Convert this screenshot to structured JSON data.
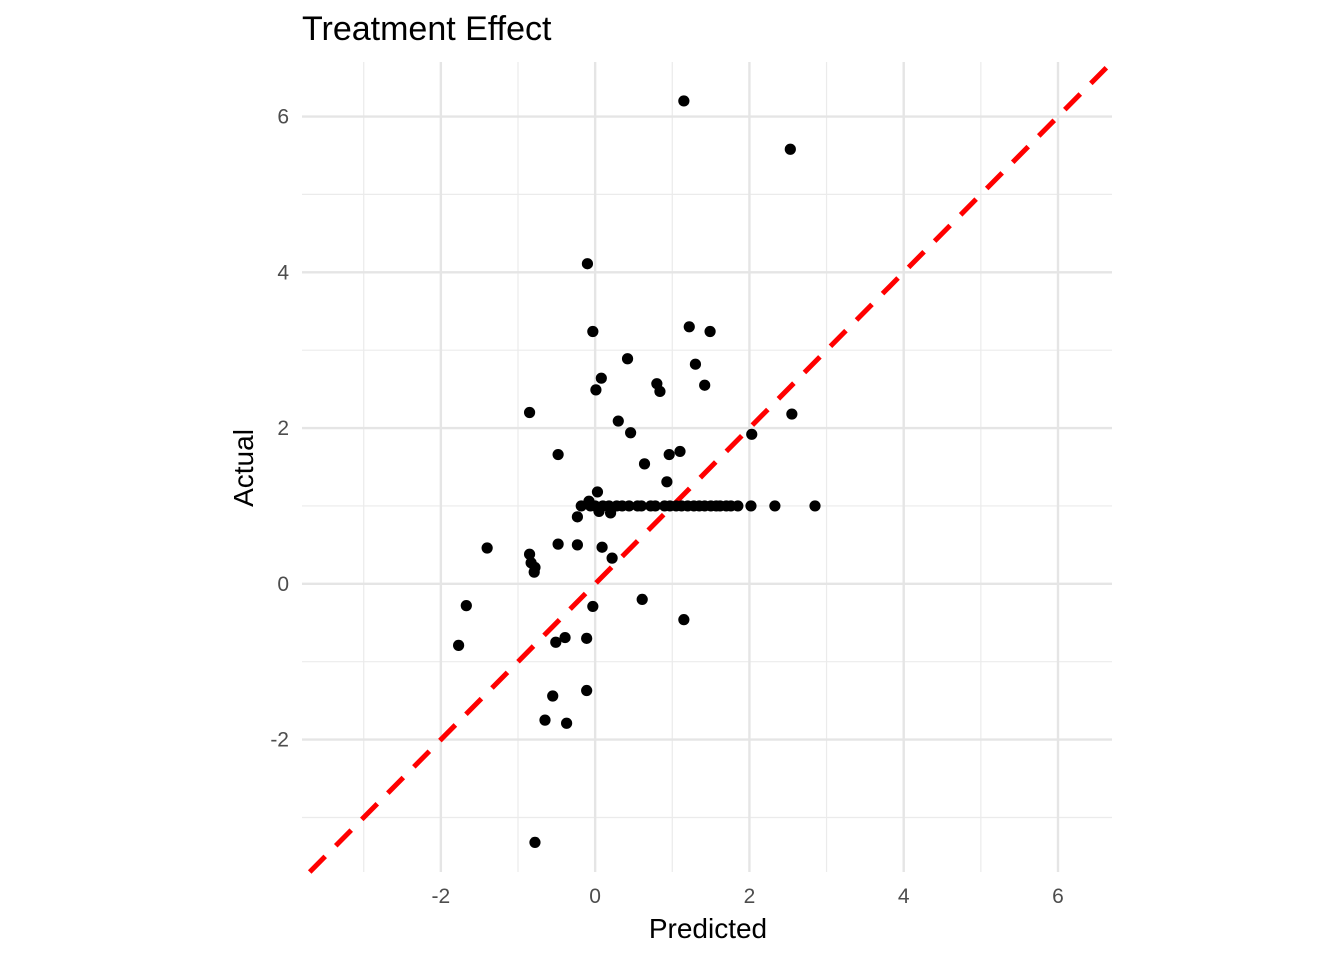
{
  "chart_data": {
    "type": "scatter",
    "title": "Treatment Effect",
    "xlabel": "Predicted",
    "ylabel": "Actual",
    "xlim": [
      -3.8,
      6.7
    ],
    "ylim": [
      -3.7,
      6.7
    ],
    "x_ticks": [
      -2,
      0,
      2,
      4,
      6
    ],
    "y_ticks": [
      -2,
      0,
      2,
      4,
      6
    ],
    "x_tick_labels": [
      "-2",
      "0",
      "2",
      "4",
      "6"
    ],
    "y_tick_labels": [
      "-2",
      "0",
      "2",
      "4",
      "6"
    ],
    "grid": true,
    "reference_line": {
      "slope": 1,
      "intercept": 0,
      "style": "dashed",
      "color": "#ff0000"
    },
    "point_color": "#000000",
    "points": [
      {
        "x": 1.15,
        "y": 6.2
      },
      {
        "x": 2.53,
        "y": 5.58
      },
      {
        "x": -0.1,
        "y": 4.11
      },
      {
        "x": -0.03,
        "y": 3.24
      },
      {
        "x": 1.22,
        "y": 3.3
      },
      {
        "x": 1.49,
        "y": 3.24
      },
      {
        "x": 0.42,
        "y": 2.89
      },
      {
        "x": 1.3,
        "y": 2.82
      },
      {
        "x": 0.08,
        "y": 2.64
      },
      {
        "x": 0.01,
        "y": 2.49
      },
      {
        "x": 0.8,
        "y": 2.57
      },
      {
        "x": 0.84,
        "y": 2.47
      },
      {
        "x": 1.42,
        "y": 2.55
      },
      {
        "x": -0.85,
        "y": 2.2
      },
      {
        "x": 2.55,
        "y": 2.18
      },
      {
        "x": 0.3,
        "y": 2.09
      },
      {
        "x": 0.46,
        "y": 1.94
      },
      {
        "x": 2.03,
        "y": 1.92
      },
      {
        "x": 1.1,
        "y": 1.7
      },
      {
        "x": 0.96,
        "y": 1.66
      },
      {
        "x": -0.48,
        "y": 1.66
      },
      {
        "x": 0.64,
        "y": 1.54
      },
      {
        "x": 0.93,
        "y": 1.31
      },
      {
        "x": 0.03,
        "y": 1.18
      },
      {
        "x": -0.08,
        "y": 1.06
      },
      {
        "x": -0.18,
        "y": 1.0
      },
      {
        "x": -0.06,
        "y": 1.0
      },
      {
        "x": 0.05,
        "y": 0.93
      },
      {
        "x": 0.2,
        "y": 0.91
      },
      {
        "x": -0.23,
        "y": 0.86
      },
      {
        "x": 0.0,
        "y": 1.0
      },
      {
        "x": 0.1,
        "y": 1.0
      },
      {
        "x": 0.18,
        "y": 1.0
      },
      {
        "x": 0.28,
        "y": 1.0
      },
      {
        "x": 0.35,
        "y": 1.0
      },
      {
        "x": 0.44,
        "y": 1.0
      },
      {
        "x": 0.55,
        "y": 1.0
      },
      {
        "x": 0.6,
        "y": 1.0
      },
      {
        "x": 0.72,
        "y": 1.0
      },
      {
        "x": 0.78,
        "y": 1.0
      },
      {
        "x": 0.9,
        "y": 1.0
      },
      {
        "x": 0.97,
        "y": 1.0
      },
      {
        "x": 1.05,
        "y": 1.0
      },
      {
        "x": 1.12,
        "y": 1.0
      },
      {
        "x": 1.2,
        "y": 1.0
      },
      {
        "x": 1.28,
        "y": 1.0
      },
      {
        "x": 1.35,
        "y": 1.0
      },
      {
        "x": 1.42,
        "y": 1.0
      },
      {
        "x": 1.5,
        "y": 1.0
      },
      {
        "x": 1.57,
        "y": 1.0
      },
      {
        "x": 1.62,
        "y": 1.0
      },
      {
        "x": 1.7,
        "y": 1.0
      },
      {
        "x": 1.76,
        "y": 1.0
      },
      {
        "x": 1.85,
        "y": 1.0
      },
      {
        "x": 2.02,
        "y": 1.0
      },
      {
        "x": 2.33,
        "y": 1.0
      },
      {
        "x": 2.85,
        "y": 1.0
      },
      {
        "x": -1.4,
        "y": 0.46
      },
      {
        "x": -0.48,
        "y": 0.51
      },
      {
        "x": -0.23,
        "y": 0.5
      },
      {
        "x": 0.09,
        "y": 0.47
      },
      {
        "x": 0.22,
        "y": 0.33
      },
      {
        "x": -0.85,
        "y": 0.38
      },
      {
        "x": -0.83,
        "y": 0.27
      },
      {
        "x": -0.78,
        "y": 0.21
      },
      {
        "x": -0.79,
        "y": 0.15
      },
      {
        "x": -1.67,
        "y": -0.28
      },
      {
        "x": -0.03,
        "y": -0.29
      },
      {
        "x": 0.61,
        "y": -0.2
      },
      {
        "x": 1.15,
        "y": -0.46
      },
      {
        "x": -1.77,
        "y": -0.79
      },
      {
        "x": -0.51,
        "y": -0.75
      },
      {
        "x": -0.39,
        "y": -0.69
      },
      {
        "x": -0.11,
        "y": -0.7
      },
      {
        "x": -0.55,
        "y": -1.44
      },
      {
        "x": -0.11,
        "y": -1.37
      },
      {
        "x": -0.65,
        "y": -1.75
      },
      {
        "x": -0.37,
        "y": -1.79
      },
      {
        "x": -0.78,
        "y": -3.32
      }
    ]
  }
}
